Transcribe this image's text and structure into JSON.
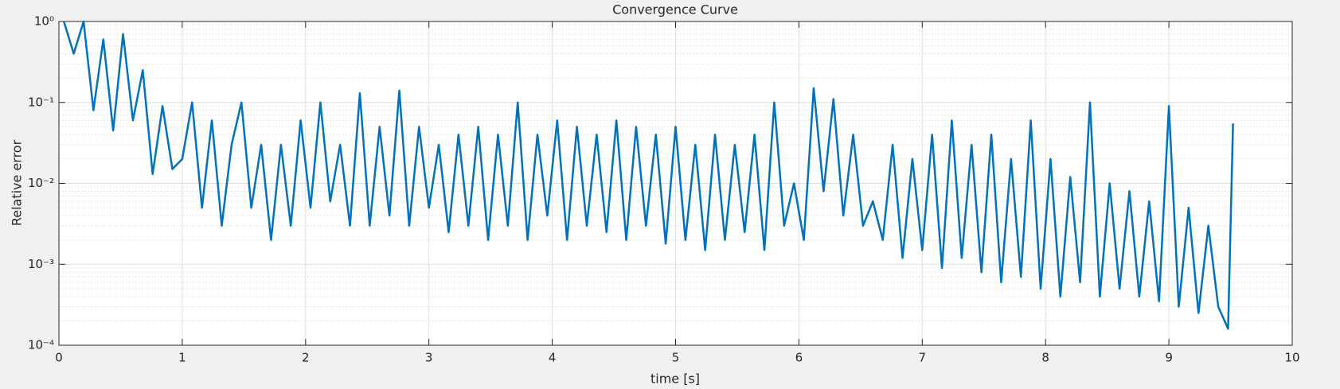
{
  "chart_data": {
    "type": "line",
    "title": "Convergence Curve",
    "x_label": "time [s]",
    "y_label": "Relative error",
    "log_y": true,
    "grid": true,
    "minor_grid": true,
    "xlim": [
      0,
      10
    ],
    "xticks": [
      0,
      1,
      2,
      3,
      4,
      5,
      6,
      7,
      8,
      9,
      10
    ],
    "ylim": [
      0.0001,
      1
    ],
    "yticks": [
      {
        "value": 0.0001,
        "label": "10⁻⁴"
      },
      {
        "value": 0.001,
        "label": "10⁻³"
      },
      {
        "value": 0.01,
        "label": "10⁻²"
      },
      {
        "value": 0.1,
        "label": "10⁻¹"
      },
      {
        "value": 1,
        "label": "10⁰"
      }
    ],
    "x": [
      0.04,
      0.12,
      0.2,
      0.28,
      0.36,
      0.44,
      0.52,
      0.6,
      0.68,
      0.76,
      0.84,
      0.92,
      1,
      1.08,
      1.16,
      1.24,
      1.32,
      1.4,
      1.48,
      1.56,
      1.64,
      1.72,
      1.8,
      1.88,
      1.96,
      2.04,
      2.12,
      2.2,
      2.28,
      2.36,
      2.44,
      2.52,
      2.6,
      2.68,
      2.76,
      2.84,
      2.92,
      3,
      3.08,
      3.16,
      3.24,
      3.32,
      3.4,
      3.48,
      3.56,
      3.64,
      3.72,
      3.8,
      3.88,
      3.96,
      4.04,
      4.12,
      4.2,
      4.28,
      4.36,
      4.44,
      4.52,
      4.6,
      4.68,
      4.76,
      4.84,
      4.92,
      5,
      5.08,
      5.16,
      5.24,
      5.32,
      5.4,
      5.48,
      5.56,
      5.64,
      5.72,
      5.8,
      5.88,
      5.96,
      6.04,
      6.12,
      6.2,
      6.28,
      6.36,
      6.44,
      6.52,
      6.6,
      6.68,
      6.76,
      6.84,
      6.92,
      7,
      7.08,
      7.16,
      7.24,
      7.32,
      7.4,
      7.48,
      7.56,
      7.64,
      7.72,
      7.8,
      7.88,
      7.96,
      8.04,
      8.12,
      8.2,
      8.28,
      8.36,
      8.44,
      8.52,
      8.6,
      8.68,
      8.76,
      8.84,
      8.92,
      9,
      9.08,
      9.16,
      9.24,
      9.32,
      9.4,
      9.48,
      9.52
    ],
    "series": [
      {
        "name": "Relative error",
        "color": "#0072bd",
        "values": [
          1,
          0.4,
          1,
          0.08,
          0.6,
          0.045,
          0.7,
          0.06,
          0.25,
          0.013,
          0.09,
          0.015,
          0.02,
          0.1,
          0.005,
          0.06,
          0.003,
          0.03,
          0.1,
          0.005,
          0.03,
          0.002,
          0.03,
          0.003,
          0.06,
          0.005,
          0.1,
          0.006,
          0.03,
          0.003,
          0.13,
          0.003,
          0.05,
          0.004,
          0.14,
          0.003,
          0.05,
          0.005,
          0.03,
          0.0025,
          0.04,
          0.003,
          0.05,
          0.002,
          0.04,
          0.003,
          0.1,
          0.002,
          0.04,
          0.004,
          0.06,
          0.002,
          0.05,
          0.003,
          0.04,
          0.0025,
          0.06,
          0.002,
          0.05,
          0.003,
          0.04,
          0.0018,
          0.05,
          0.002,
          0.03,
          0.0015,
          0.04,
          0.002,
          0.03,
          0.0025,
          0.04,
          0.0015,
          0.1,
          0.003,
          0.01,
          0.002,
          0.15,
          0.008,
          0.11,
          0.004,
          0.04,
          0.003,
          0.006,
          0.002,
          0.03,
          0.0012,
          0.02,
          0.0015,
          0.04,
          0.0009,
          0.06,
          0.0012,
          0.03,
          0.0008,
          0.04,
          0.0006,
          0.02,
          0.0007,
          0.06,
          0.0005,
          0.02,
          0.0004,
          0.012,
          0.0006,
          0.1,
          0.0004,
          0.01,
          0.0005,
          0.008,
          0.0004,
          0.006,
          0.00035,
          0.09,
          0.0003,
          0.005,
          0.00025,
          0.003,
          0.0003,
          0.00016,
          0.055
        ]
      }
    ]
  }
}
